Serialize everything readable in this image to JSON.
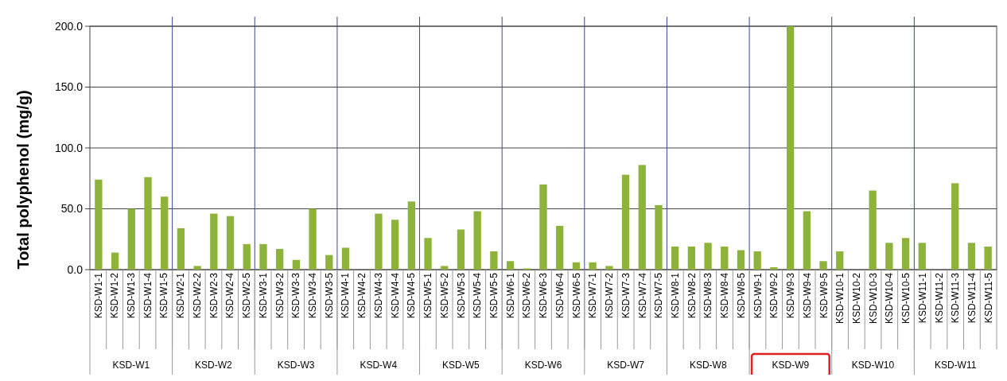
{
  "chart_data": {
    "type": "bar",
    "ylabel": "Total polyphenol  (mg/g)",
    "categories": [
      "KSD-W1-1",
      "KSD-W1-2",
      "KSD-W1-3",
      "KSD-W1-4",
      "KSD-W1-5",
      "KSD-W2-1",
      "KSD-W2-2",
      "KSD-W2-3",
      "KSD-W2-4",
      "KSD-W2-5",
      "KSD-W3-1",
      "KSD-W3-2",
      "KSD-W3-3",
      "KSD-W3-4",
      "KSD-W3-5",
      "KSD-W4-1",
      "KSD-W4-2",
      "KSD-W4-3",
      "KSD-W4-4",
      "KSD-W4-5",
      "KSD-W5-1",
      "KSD-W5-2",
      "KSD-W5-3",
      "KSD-W5-4",
      "KSD-W5-5",
      "KSD-W6-1",
      "KSD-W6-2",
      "KSD-W6-3",
      "KSD-W6-4",
      "KSD-W6-5",
      "KSD-W7-1",
      "KSD-W7-2",
      "KSD-W7-3",
      "KSD-W7-4",
      "KSD-W7-5",
      "KSD-W8-1",
      "KSD-W8-2",
      "KSD-W8-3",
      "KSD-W8-4",
      "KSD-W8-5",
      "KSD-W9-1",
      "KSD-W9-2",
      "KSD-W9-3",
      "KSD-W9-4",
      "KSD-W9-5",
      "KSD-W10-1",
      "KSD-W10-2",
      "KSD-W10-3",
      "KSD-W10-4",
      "KSD-W10-5",
      "KSD-W11-1",
      "KSD-W11-2",
      "KSD-W11-3",
      "KSD-W11-4",
      "KSD-W11-5"
    ],
    "values": [
      74,
      14,
      50,
      76,
      60,
      34,
      3,
      46,
      44,
      21,
      21,
      17,
      8,
      50,
      12,
      18,
      0,
      46,
      41,
      56,
      26,
      3,
      33,
      48,
      15,
      7,
      1,
      70,
      36,
      6,
      6,
      3,
      78,
      86,
      53,
      19,
      19,
      22,
      19,
      16,
      15,
      2,
      200,
      48,
      7,
      15,
      0,
      65,
      22,
      26,
      22,
      0,
      71,
      22,
      19
    ],
    "color": "#8db33a",
    "ylim": [
      0,
      200
    ],
    "yticks": [
      {
        "value": 0,
        "label": "0.0"
      },
      {
        "value": 50,
        "label": "50.0"
      },
      {
        "value": 100,
        "label": "100.0"
      },
      {
        "value": 150,
        "label": "150.0"
      },
      {
        "value": 200,
        "label": "200.0"
      }
    ],
    "grid": "y",
    "annotations": [
      "KSD-W1",
      "KSD-W2",
      "KSD-W3",
      "KSD-W4",
      "KSD-W5",
      "KSD-W6",
      "KSD-W7",
      "KSD-W8",
      "KSD-W9",
      "KSD-W10",
      "KSD-W11"
    ]
  }
}
